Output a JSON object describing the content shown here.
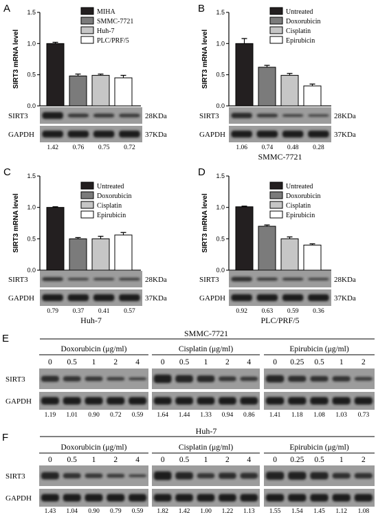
{
  "colors": {
    "black_fill": "#231f20",
    "dark_gray": "#7b7b7b",
    "light_gray": "#c6c6c6",
    "white": "#ffffff",
    "blot_bg": "#9c9c9c",
    "band": "#1b1b1b"
  },
  "chart_data": [
    {
      "panel": "A",
      "type": "bar",
      "ylabel": "SIRT3 mRNA level",
      "ylim": [
        0,
        1.5
      ],
      "yticks": [
        "0.0",
        "0.5",
        "1.0",
        "1.5"
      ],
      "categories": [
        "MIHA",
        "SMMC-7721",
        "Huh-7",
        "PLC/PRF/5"
      ],
      "values": [
        1.0,
        0.48,
        0.49,
        0.45
      ],
      "errors": [
        0.02,
        0.03,
        0.02,
        0.04
      ],
      "fills": [
        "black_fill",
        "dark_gray",
        "light_gray",
        "white"
      ],
      "legend": [
        "MIHA",
        "SMMC-7721",
        "Huh-7",
        "PLC/PRF/5"
      ],
      "legend_position": "top-right",
      "blot": {
        "rows": [
          {
            "label": "SIRT3",
            "size": "28KDa"
          },
          {
            "label": "GAPDH",
            "size": "37KDa"
          }
        ],
        "quant": [
          "1.42",
          "0.76",
          "0.75",
          "0.72"
        ],
        "caption": ""
      }
    },
    {
      "panel": "B",
      "type": "bar",
      "ylabel": "SIRT3 mRNA level",
      "ylim": [
        0,
        1.5
      ],
      "yticks": [
        "0.0",
        "0.5",
        "1.0",
        "1.5"
      ],
      "categories": [
        "Untreated",
        "Doxorubicin",
        "Cisplatin",
        "Epirubicin"
      ],
      "values": [
        1.0,
        0.62,
        0.49,
        0.32
      ],
      "errors": [
        0.08,
        0.03,
        0.03,
        0.03
      ],
      "fills": [
        "black_fill",
        "dark_gray",
        "light_gray",
        "white"
      ],
      "legend": [
        "Untreated",
        "Doxorubicin",
        "Cisplatin",
        "Epirubicin"
      ],
      "legend_position": "top-right",
      "blot": {
        "rows": [
          {
            "label": "SIRT3",
            "size": "28KDa"
          },
          {
            "label": "GAPDH",
            "size": "37KDa"
          }
        ],
        "quant": [
          "1.06",
          "0.74",
          "0.48",
          "0.28"
        ],
        "caption": "SMMC-7721"
      }
    },
    {
      "panel": "C",
      "type": "bar",
      "ylabel": "SIRT3 mRNA level",
      "ylim": [
        0,
        1.5
      ],
      "yticks": [
        "0.0",
        "0.5",
        "1.0",
        "1.5"
      ],
      "categories": [
        "Untreated",
        "Doxorubicin",
        "Cisplatin",
        "Epirubicin"
      ],
      "values": [
        1.0,
        0.5,
        0.5,
        0.56
      ],
      "errors": [
        0.01,
        0.02,
        0.04,
        0.04
      ],
      "fills": [
        "black_fill",
        "dark_gray",
        "light_gray",
        "white"
      ],
      "legend": [
        "Untreated",
        "Doxorubicin",
        "Cisplatin",
        "Epirubicin"
      ],
      "legend_position": "top-right",
      "blot": {
        "rows": [
          {
            "label": "SIRT3",
            "size": "28KDa"
          },
          {
            "label": "GAPDH",
            "size": "37KDa"
          }
        ],
        "quant": [
          "0.79",
          "0.37",
          "0.41",
          "0.57"
        ],
        "caption": "Huh-7"
      }
    },
    {
      "panel": "D",
      "type": "bar",
      "ylabel": "SIRT3 mRNA level",
      "ylim": [
        0,
        1.5
      ],
      "yticks": [
        "0.0",
        "0.5",
        "1.0",
        "1.5"
      ],
      "categories": [
        "Untreated",
        "Doxorubicin",
        "Cisplatin",
        "Epirubicin"
      ],
      "values": [
        1.01,
        0.7,
        0.5,
        0.4
      ],
      "errors": [
        0.01,
        0.02,
        0.03,
        0.02
      ],
      "fills": [
        "black_fill",
        "dark_gray",
        "light_gray",
        "white"
      ],
      "legend": [
        "Untreated",
        "Doxorubicin",
        "Cisplatin",
        "Epirubicin"
      ],
      "legend_position": "top-right",
      "blot": {
        "rows": [
          {
            "label": "SIRT3",
            "size": "28KDa"
          },
          {
            "label": "GAPDH",
            "size": "37KDa"
          }
        ],
        "quant": [
          "0.92",
          "0.63",
          "0.59",
          "0.36"
        ],
        "caption": "PLC/PRF/5"
      }
    }
  ],
  "panel_E": {
    "label": "E",
    "cell_line": "SMMC-7721",
    "row_labels": [
      "SIRT3",
      "GAPDH"
    ],
    "groups": [
      {
        "drug": "Doxorubicin (μg/ml)",
        "doses": [
          "0",
          "0.5",
          "1",
          "2",
          "4"
        ],
        "quant": [
          "1.19",
          "1.01",
          "0.90",
          "0.72",
          "0.59"
        ]
      },
      {
        "drug": "Cisplatin (μg/ml)",
        "doses": [
          "0",
          "0.5",
          "1",
          "2",
          "4"
        ],
        "quant": [
          "1.64",
          "1.44",
          "1.33",
          "0.94",
          "0.86"
        ]
      },
      {
        "drug": "Epirubicin (μg/ml)",
        "doses": [
          "0",
          "0.25",
          "0.5",
          "1",
          "2"
        ],
        "quant": [
          "1.41",
          "1.18",
          "1.08",
          "1.03",
          "0.73"
        ]
      }
    ]
  },
  "panel_F": {
    "label": "F",
    "cell_line": "Huh-7",
    "row_labels": [
      "SIRT3",
      "GAPDH"
    ],
    "groups": [
      {
        "drug": "Doxorubicin (μg/ml)",
        "doses": [
          "0",
          "0.5",
          "1",
          "2",
          "4"
        ],
        "quant": [
          "1.43",
          "1.04",
          "0.90",
          "0.79",
          "0.59"
        ]
      },
      {
        "drug": "Cisplatin (μg/ml)",
        "doses": [
          "0",
          "0.5",
          "1",
          "2",
          "4"
        ],
        "quant": [
          "1.82",
          "1.42",
          "1.00",
          "1.22",
          "1.13"
        ]
      },
      {
        "drug": "Epirubicin (μg/ml)",
        "doses": [
          "0",
          "0.25",
          "0.5",
          "1",
          "2"
        ],
        "quant": [
          "1.55",
          "1.54",
          "1.45",
          "1.12",
          "1.08"
        ]
      }
    ]
  }
}
